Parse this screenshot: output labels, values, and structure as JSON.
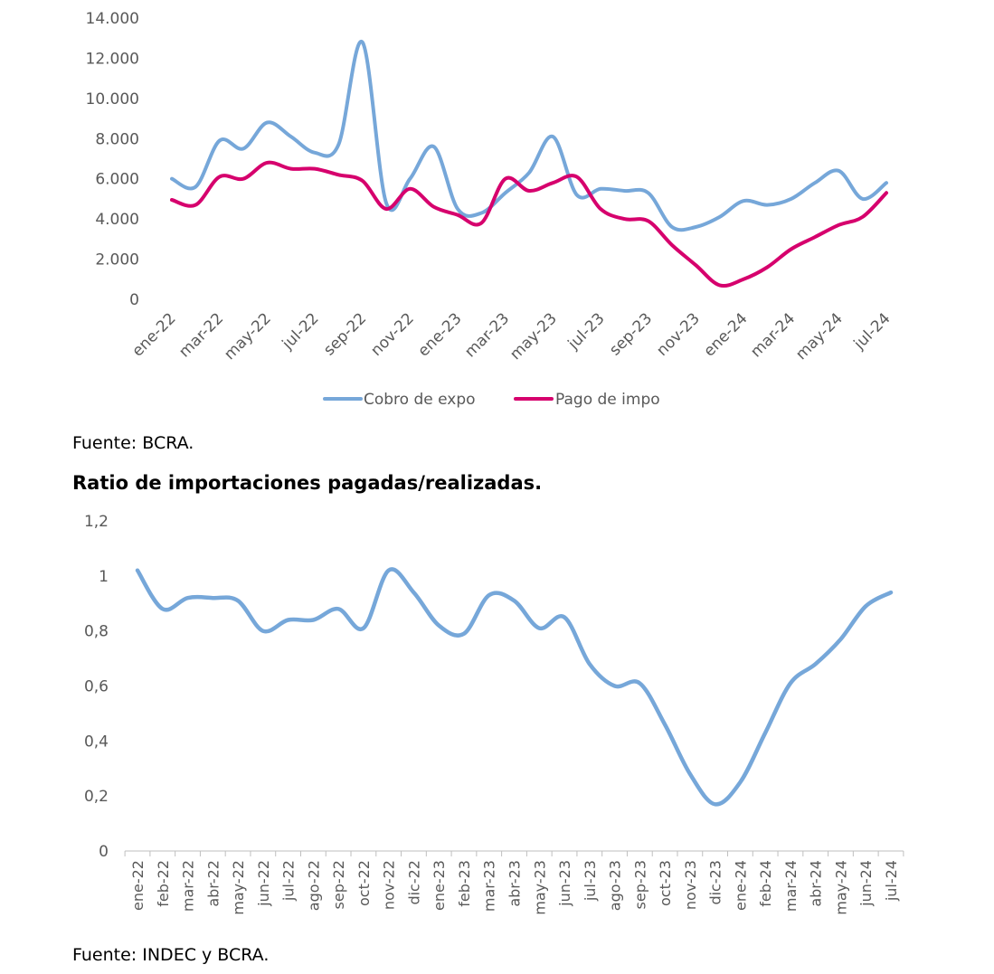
{
  "chart_data": [
    {
      "type": "line",
      "title": "",
      "xlabel": "",
      "ylabel": "",
      "ylim": [
        0,
        14000
      ],
      "yticks": [
        "0",
        "2.000",
        "4.000",
        "6.000",
        "8.000",
        "10.000",
        "12.000",
        "14.000"
      ],
      "x": [
        "ene-22",
        "feb-22",
        "mar-22",
        "abr-22",
        "may-22",
        "jun-22",
        "jul-22",
        "ago-22",
        "sep-22",
        "oct-22",
        "nov-22",
        "dic-22",
        "ene-23",
        "feb-23",
        "mar-23",
        "abr-23",
        "may-23",
        "jun-23",
        "jul-23",
        "ago-23",
        "sep-23",
        "oct-23",
        "nov-23",
        "dic-23",
        "ene-24",
        "feb-24",
        "mar-24",
        "abr-24",
        "may-24",
        "jun-24",
        "jul-24"
      ],
      "xtick_labels": [
        "ene-22",
        "mar-22",
        "may-22",
        "jul-22",
        "sep-22",
        "nov-22",
        "ene-23",
        "mar-23",
        "may-23",
        "jul-23",
        "sep-23",
        "nov-23",
        "ene-24",
        "mar-24",
        "may-24",
        "jul-24"
      ],
      "grid": false,
      "legend": "bottom",
      "series": [
        {
          "name": "Cobro de expo",
          "color": "#76a7d9",
          "values": [
            6000,
            5600,
            7900,
            7500,
            8800,
            8100,
            7300,
            7700,
            12800,
            4800,
            6000,
            7600,
            4500,
            4300,
            5300,
            6300,
            8100,
            5200,
            5500,
            5400,
            5300,
            3600,
            3600,
            4100,
            4900,
            4700,
            5000,
            5800,
            6400,
            5000,
            5800
          ]
        },
        {
          "name": "Pago de impo",
          "color": "#d6006d",
          "values": [
            4950,
            4700,
            6100,
            6000,
            6800,
            6500,
            6500,
            6200,
            5900,
            4500,
            5500,
            4600,
            4200,
            3800,
            6000,
            5400,
            5800,
            6100,
            4500,
            4000,
            3900,
            2700,
            1700,
            700,
            1000,
            1600,
            2500,
            3100,
            3700,
            4100,
            5300
          ]
        }
      ]
    },
    {
      "type": "line",
      "title": "Ratio de importaciones pagadas/realizadas.",
      "xlabel": "",
      "ylabel": "",
      "ylim": [
        0,
        1.2
      ],
      "yticks": [
        "0",
        "0,2",
        "0,4",
        "0,6",
        "0,8",
        "1",
        "1,2"
      ],
      "x": [
        "ene-22",
        "feb-22",
        "mar-22",
        "abr-22",
        "may-22",
        "jun-22",
        "jul-22",
        "ago-22",
        "sep-22",
        "oct-22",
        "nov-22",
        "dic-22",
        "ene-23",
        "feb-23",
        "mar-23",
        "abr-23",
        "may-23",
        "jun-23",
        "jul-23",
        "ago-23",
        "sep-23",
        "oct-23",
        "nov-23",
        "dic-23",
        "ene-24",
        "feb-24",
        "mar-24",
        "abr-24",
        "may-24",
        "jun-24",
        "jul-24"
      ],
      "grid": false,
      "series": [
        {
          "color": "#76a7d9",
          "values": [
            1.02,
            0.88,
            0.92,
            0.92,
            0.91,
            0.8,
            0.84,
            0.84,
            0.88,
            0.81,
            1.02,
            0.94,
            0.82,
            0.79,
            0.93,
            0.91,
            0.81,
            0.85,
            0.68,
            0.6,
            0.61,
            0.46,
            0.28,
            0.17,
            0.25,
            0.43,
            0.61,
            0.68,
            0.77,
            0.89,
            0.94
          ]
        }
      ]
    }
  ],
  "notes": {
    "source1": "Fuente: BCRA.",
    "source2": "Fuente: INDEC y BCRA."
  }
}
